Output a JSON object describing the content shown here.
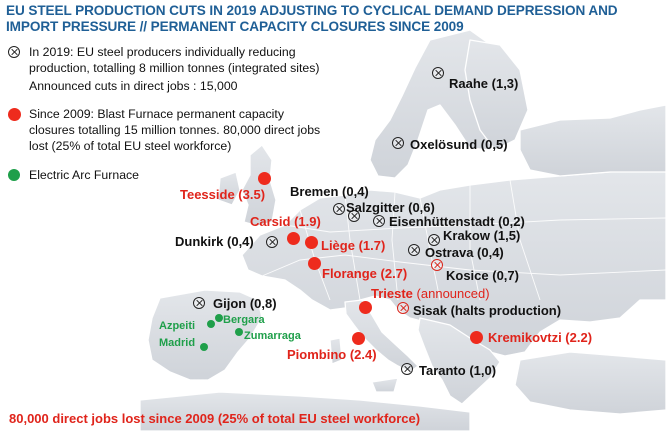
{
  "title": "EU STEEL PRODUCTION CUTS IN 2019 ADJUSTING TO CYCLICAL DEMAND DEPRESSION AND IMPORT PRESSURE // PERMANENT CAPACITY CLOSURES SINCE 2009",
  "legend": {
    "cuts_line1": "In 2019: EU steel producers individually reducing",
    "cuts_line2": "production, totalling 8 million tonnes (integrated sites)",
    "cuts_line3": "Announced cuts in direct jobs : 15,000",
    "closures_line1": "Since 2009: Blast Furnace permanent capacity",
    "closures_line2": "closures totalling 15 million tonnes. 80,000 direct jobs",
    "closures_line3": "lost (25% of total EU steel workforce)",
    "eaf": "Electric Arc Furnace"
  },
  "sites_cuts": {
    "raahe": "Raahe (1,3)",
    "oxelosund": "Oxelösund (0,5)",
    "bremen": "Bremen (0,4)",
    "salzgitter": "Salzgitter (0,6)",
    "eisenhuttenstadt": "Eisenhüttenstadt (0,2)",
    "dunkirk": "Dunkirk (0,4)",
    "krakow": "Krakow (1,5)",
    "ostrava": "Ostrava (0,4)",
    "kosice": "Kosice (0,7)",
    "gijon": "Gijon (0,8)",
    "sisak": "Sisak (halts production)",
    "taranto": "Taranto (1,0)"
  },
  "sites_closures": {
    "teesside": "Teesside (3.5)",
    "carsid": "Carsid (1.9)",
    "liege": "Liège (1.7)",
    "florange": "Florange (2.7)",
    "trieste": "Trieste",
    "trieste_note": "(announced)",
    "piombino": "Piombino (2.4)",
    "kremikovtzi": "Kremikovtzi (2.2)"
  },
  "sites_eaf": {
    "azpeiti": "Azpeiti",
    "bergara": "Bergara",
    "zumarraga": "Zumarraga",
    "madrid": "Madrid"
  },
  "footer": "80,000 direct jobs lost since 2009 (25% of total EU steel workforce)",
  "colors": {
    "title": "#1f5f96",
    "closure": "#ee2b1d",
    "eaf": "#1f9f4a",
    "land": "#d4d8de",
    "sea": "#ffffff"
  }
}
